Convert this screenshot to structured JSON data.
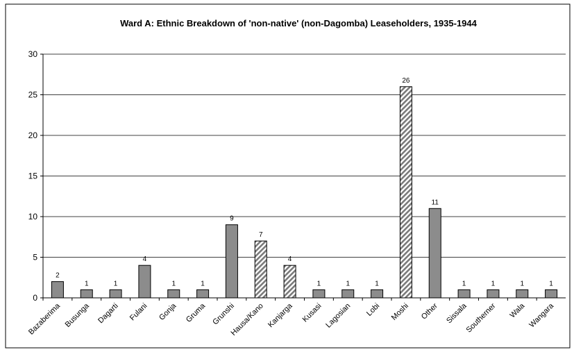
{
  "chart_data": {
    "type": "bar",
    "title": "Ward A: Ethnic Breakdown of 'non-native' (non-Dagomba) Leaseholders, 1935-1944",
    "categories": [
      "Bazaberima",
      "Busunga",
      "Dagarti",
      "Fulani",
      "Gonja",
      "Gruma",
      "Grunshi",
      "Hausa/Kano",
      "Kanjarga",
      "Kusasi",
      "Lagosian",
      "Lobi",
      "Moshi",
      "Other",
      "Sissala",
      "Southerner",
      "Wala",
      "Wangara"
    ],
    "values": [
      2,
      1,
      1,
      4,
      1,
      1,
      9,
      7,
      4,
      1,
      1,
      1,
      26,
      11,
      1,
      1,
      1,
      1
    ],
    "hatched": [
      false,
      false,
      false,
      false,
      false,
      false,
      false,
      true,
      true,
      false,
      false,
      false,
      true,
      false,
      false,
      false,
      false,
      false
    ],
    "color": "#8c8c8c",
    "ylim": [
      0,
      30
    ],
    "yticks": [
      0,
      5,
      10,
      15,
      20,
      25,
      30
    ],
    "grid": true
  }
}
